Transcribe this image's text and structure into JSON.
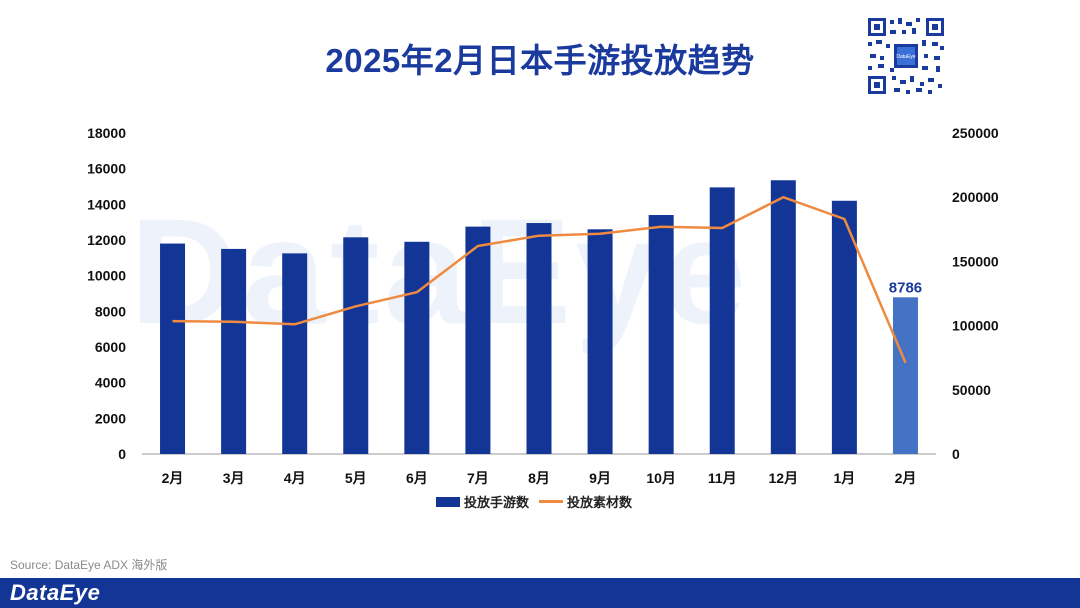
{
  "title": "2025年2月日本手游投放趋势",
  "watermark": "DataEye",
  "source": "Source: DataEye ADX 海外版",
  "brand": "DataEye",
  "colors": {
    "bar": "#123596",
    "bar_highlight": "#4472c4",
    "line": "#ef8a41",
    "title": "#1b3a9e"
  },
  "chart_data": {
    "type": "bar",
    "categories": [
      "2月",
      "3月",
      "4月",
      "5月",
      "6月",
      "7月",
      "8月",
      "9月",
      "10月",
      "11月",
      "12月",
      "1月",
      "2月"
    ],
    "series": [
      {
        "name": "投放手游数",
        "type": "bar",
        "axis": "left",
        "values": [
          11800,
          11500,
          11250,
          12150,
          11900,
          12750,
          12950,
          12600,
          13400,
          14950,
          15350,
          14200,
          8786
        ]
      },
      {
        "name": "投放素材数",
        "type": "line",
        "axis": "right",
        "values": [
          103500,
          103000,
          101000,
          115000,
          126000,
          162000,
          170000,
          171500,
          177000,
          176000,
          200000,
          183000,
          71000
        ]
      }
    ],
    "left_axis": {
      "min": 0,
      "max": 18000,
      "ticks": [
        0,
        2000,
        4000,
        6000,
        8000,
        10000,
        12000,
        14000,
        16000,
        18000
      ]
    },
    "right_axis": {
      "min": 0,
      "max": 250000,
      "ticks": [
        0,
        50000,
        100000,
        150000,
        200000,
        250000
      ]
    },
    "highlight_label": "8786",
    "legend_position": "bottom-center"
  }
}
